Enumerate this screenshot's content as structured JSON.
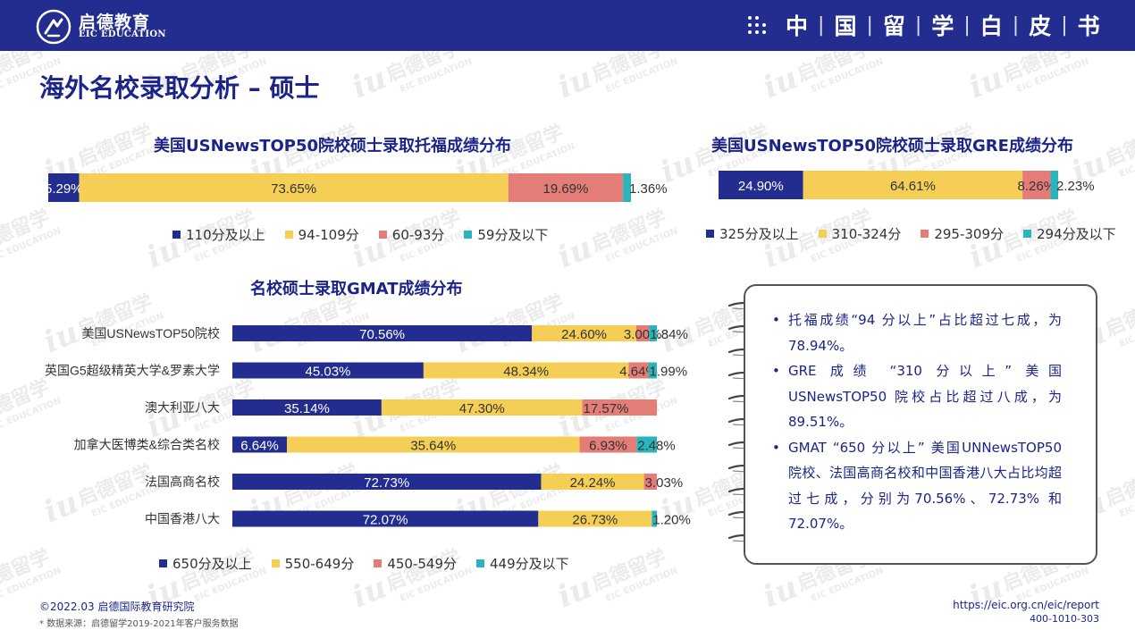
{
  "header": {
    "logo_cn": "启德教育",
    "logo_en": "EIC EDUCATION",
    "book_title_chars": [
      "中",
      "国",
      "留",
      "学",
      "白",
      "皮",
      "书"
    ]
  },
  "page_title": "海外名校录取分析 – 硕士",
  "colors": {
    "navy": "#232d8f",
    "yellow": "#f5cf55",
    "salmon": "#e47d78",
    "teal": "#2ab4bb"
  },
  "watermark": {
    "text_cn": "启德留学",
    "text_en": "EIC EDUCATION"
  },
  "chart_data": [
    {
      "type": "bar",
      "orientation": "horizontal",
      "stacked": true,
      "title": "美国USNewsTOP50院校硕士录取托福成绩分布",
      "categories": [
        ""
      ],
      "series": [
        {
          "name": "110分及以上",
          "values": [
            5.29
          ],
          "label": "5.29%"
        },
        {
          "name": "94-109分",
          "values": [
            73.65
          ],
          "label": "73.65%"
        },
        {
          "name": "60-93分",
          "values": [
            19.69
          ],
          "label": "19.69%"
        },
        {
          "name": "59分及以下",
          "values": [
            1.36
          ],
          "label": "1.36%"
        }
      ],
      "legend_position": "bottom"
    },
    {
      "type": "bar",
      "orientation": "horizontal",
      "stacked": true,
      "title": "美国USNewsTOP50院校硕士录取GRE成绩分布",
      "categories": [
        ""
      ],
      "series": [
        {
          "name": "325分及以上",
          "values": [
            24.9
          ],
          "label": "24.90%"
        },
        {
          "name": "310-324分",
          "values": [
            64.61
          ],
          "label": "64.61%"
        },
        {
          "name": "295-309分",
          "values": [
            8.26
          ],
          "label": "8.26%"
        },
        {
          "name": "294分及以下",
          "values": [
            2.23
          ],
          "label": "2.23%"
        }
      ],
      "legend_position": "bottom"
    },
    {
      "type": "bar",
      "orientation": "horizontal",
      "stacked": true,
      "title": "名校硕士录取GMAT成绩分布",
      "categories": [
        "美国USNewsTOP50院校",
        "英国G5超级精英大学&罗素大学",
        "澳大利亚八大",
        "加拿大医博类&综合类名校",
        "法国高商名校",
        "中国香港八大"
      ],
      "series": [
        {
          "name": "650分及以上",
          "values": [
            70.56,
            45.03,
            35.14,
            6.64,
            72.73,
            72.07
          ],
          "labels": [
            "70.56%",
            "45.03%",
            "35.14%",
            "6.64%",
            "72.73%",
            "72.07%"
          ]
        },
        {
          "name": "550-649分",
          "values": [
            24.6,
            48.34,
            47.3,
            35.64,
            24.24,
            26.73
          ],
          "labels": [
            "24.60%",
            "48.34%",
            "47.30%",
            "35.64%",
            "24.24%",
            "26.73%"
          ]
        },
        {
          "name": "450-549分",
          "values": [
            3.0,
            4.64,
            17.57,
            6.93,
            3.03,
            0
          ],
          "labels": [
            "3.00%",
            "4.64%",
            "17.57%",
            "6.93%",
            "3.03%",
            ""
          ]
        },
        {
          "name": "449分及以下",
          "values": [
            1.84,
            1.99,
            0,
            2.48,
            0,
            1.2
          ],
          "labels": [
            "1.84%",
            "1.99%",
            "",
            "2.48%",
            "",
            "1.20%"
          ]
        }
      ],
      "legend_position": "bottom"
    }
  ],
  "notes": [
    "托福成绩“94 分以上”占比超过七成，为78.94%。",
    "GRE 成绩 “310 分以上” 美国USNewsTOP50 院校占比超过八成，为89.51%。",
    "GMAT “650 分以上” 美国UNNewsTOP50 院校、法国高商名校和中国香港八大占比均超过七成，分别为70.56%、72.73% 和72.07%。"
  ],
  "footer": {
    "copyright": "©2022.03 启德国际教育研究院",
    "source": "* 数据来源：启德留学2019-2021年客户服务数据",
    "url": "https://eic.org.cn/eic/report",
    "phone": "400-1010-303"
  }
}
